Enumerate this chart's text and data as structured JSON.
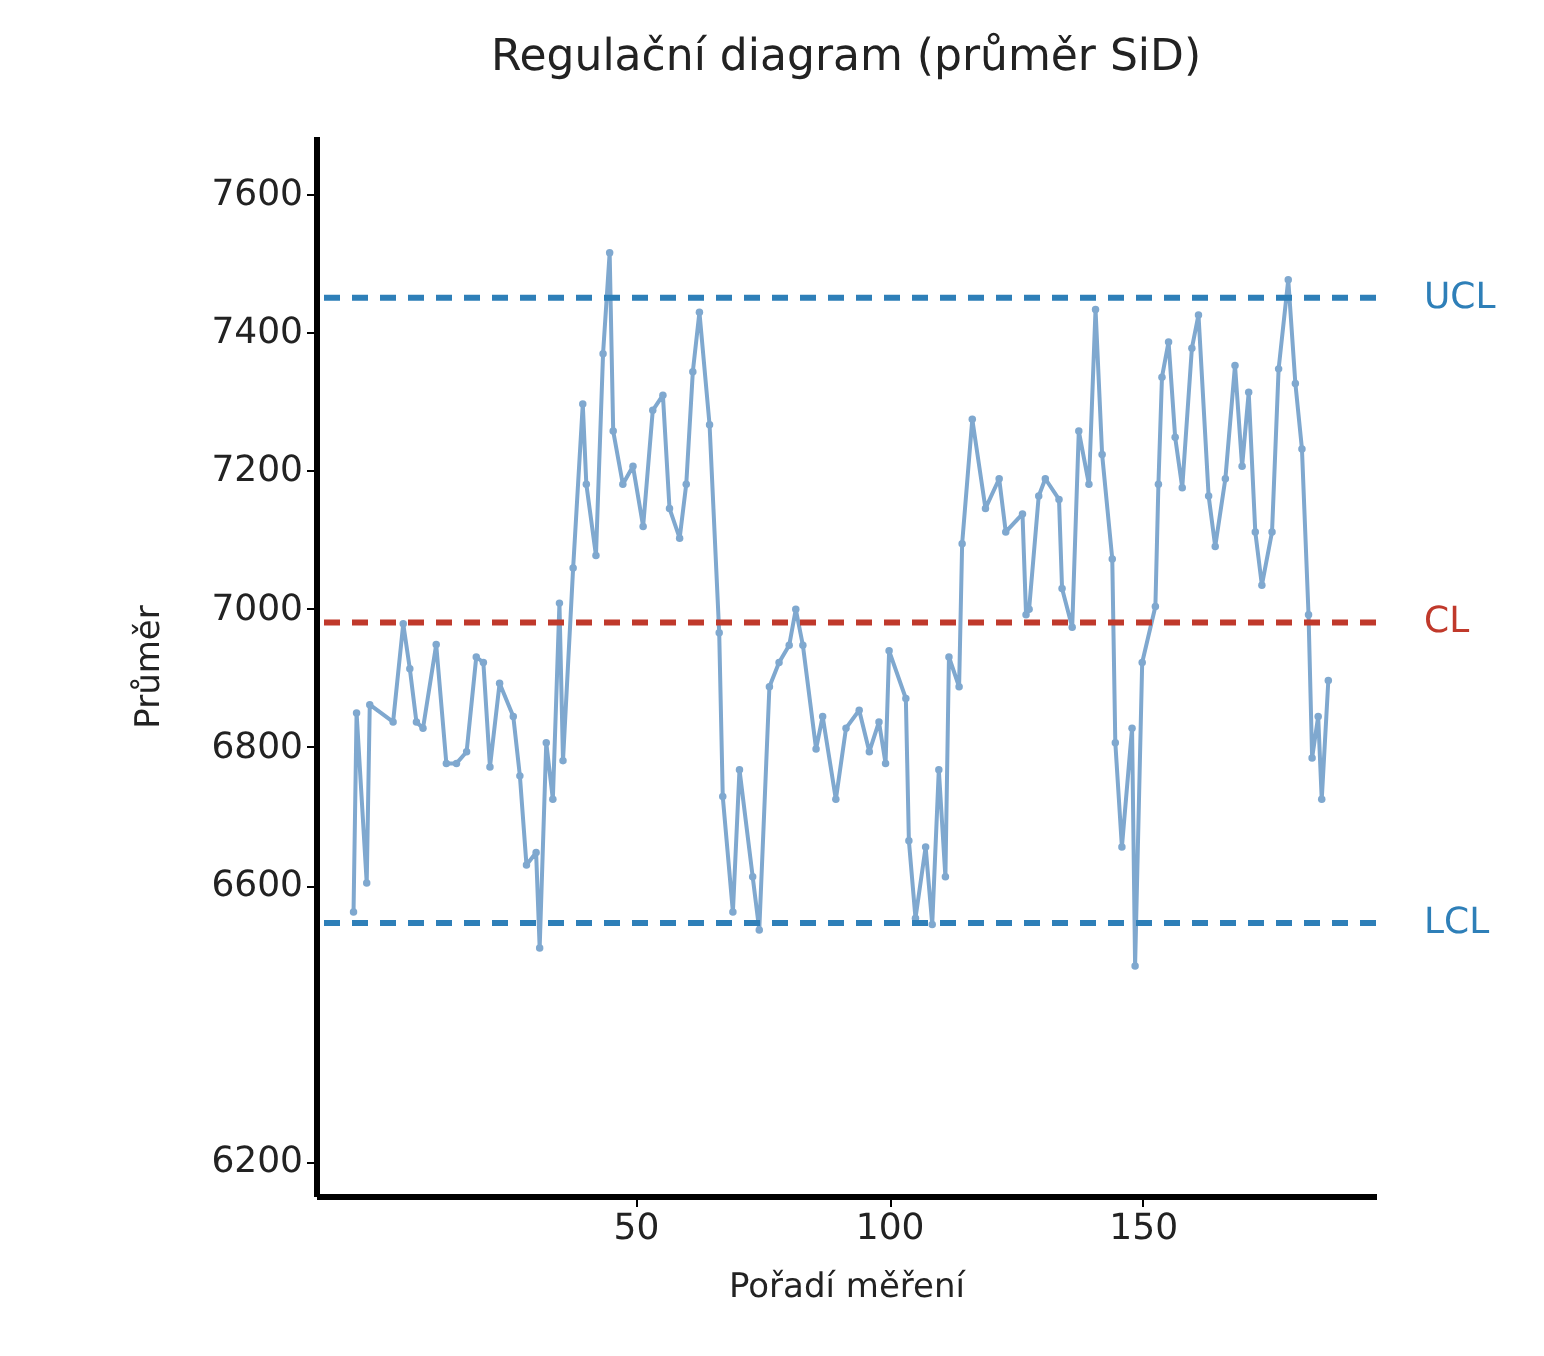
{
  "chart_data": {
    "type": "line",
    "title": "Regulační diagram (průměr SiD)",
    "xlabel": "Pořadí měření",
    "ylabel": "Průměr",
    "xlim": [
      -13,
      196
    ],
    "xticks": [
      50,
      100,
      150
    ],
    "ylim": [
      6150,
      7684
    ],
    "yticks": [
      6200,
      6600,
      6800,
      7000,
      7200,
      7400,
      7600
    ],
    "grid": false,
    "marker": "circle",
    "line_style": "solid",
    "series": [
      {
        "color": "#7fa8cf",
        "x": [
          -5.6,
          -5.0,
          -3.0,
          -2.4,
          2.2,
          4.2,
          5.5,
          6.8,
          8.1,
          10.7,
          12.7,
          14.7,
          16.7,
          18.6,
          20.0,
          21.3,
          23.2,
          25.9,
          27.2,
          28.5,
          30.4,
          31.1,
          32.4,
          33.7,
          35.0,
          35.7,
          37.7,
          39.6,
          40.3,
          42.2,
          43.6,
          44.9,
          45.6,
          47.5,
          49.5,
          51.5,
          53.4,
          55.4,
          56.7,
          58.7,
          60.0,
          61.3,
          62.6,
          64.6,
          66.5,
          67.2,
          69.2,
          70.5,
          73.1,
          74.4,
          76.4,
          78.3,
          80.3,
          81.6,
          83.0,
          85.6,
          86.9,
          89.5,
          91.5,
          94.1,
          96.1,
          98.0,
          99.3,
          100.0,
          103.3,
          103.9,
          105.2,
          107.2,
          108.5,
          109.8,
          111.1,
          111.8,
          113.8,
          114.4,
          116.4,
          119.0,
          121.7,
          123.0,
          126.3,
          127.0,
          127.6,
          129.5,
          130.8,
          133.5,
          134.1,
          136.1,
          137.4,
          139.4,
          140.7,
          142.0,
          144.0,
          144.6,
          145.9,
          147.9,
          148.5,
          149.9,
          152.5,
          153.1,
          153.8,
          155.1,
          156.4,
          157.8,
          159.7,
          161.0,
          163.0,
          164.3,
          166.3,
          168.2,
          169.6,
          170.9,
          172.2,
          173.5,
          175.5,
          176.8,
          178.7,
          180.1,
          181.4,
          182.7,
          183.4,
          184.6,
          185.3,
          186.6
        ],
        "values": [
          6561,
          6849,
          6603,
          6861,
          6836,
          6978,
          6913,
          6836,
          6827,
          6948,
          6776,
          6776,
          6793,
          6930,
          6922,
          6771,
          6892,
          6844,
          6758,
          6629,
          6647,
          6509,
          6806,
          6724,
          7008,
          6780,
          7059,
          7296,
          7180,
          7077,
          7369,
          7515,
          7257,
          7180,
          7206,
          7119,
          7287,
          7309,
          7145,
          7102,
          7180,
          7343,
          7429,
          7266,
          6965,
          6728,
          6561,
          6767,
          6612,
          6535,
          6887,
          6922,
          6947,
          6999,
          6947,
          6797,
          6844,
          6724,
          6827,
          6853,
          6793,
          6836,
          6776,
          6939,
          6870,
          6664,
          6552,
          6655,
          6543,
          6767,
          6612,
          6930,
          6887,
          7094,
          7274,
          7145,
          7188,
          7111,
          7137,
          6991,
          6999,
          7163,
          7188,
          7158,
          7029,
          6973,
          7257,
          7180,
          7433,
          7223,
          7072,
          6806,
          6655,
          6827,
          6483,
          6922,
          7003,
          7180,
          7335,
          7386,
          7248,
          7175,
          7377,
          7425,
          7163,
          7090,
          7188,
          7352,
          7206,
          7313,
          7111,
          7034,
          7111,
          7347,
          7476,
          7326,
          7231,
          6991,
          6784,
          6844,
          6724,
          6896
        ]
      }
    ],
    "ref_lines": [
      {
        "axis": "y",
        "value": 7450,
        "label": "UCL",
        "color": "#2e7fb8",
        "line_style": "dashed"
      },
      {
        "axis": "y",
        "value": 6980,
        "label": "CL",
        "color": "#c0392b",
        "line_style": "dashed"
      },
      {
        "axis": "y",
        "value": 6545,
        "label": "LCL",
        "color": "#2e7fb8",
        "line_style": "dashed"
      }
    ]
  }
}
